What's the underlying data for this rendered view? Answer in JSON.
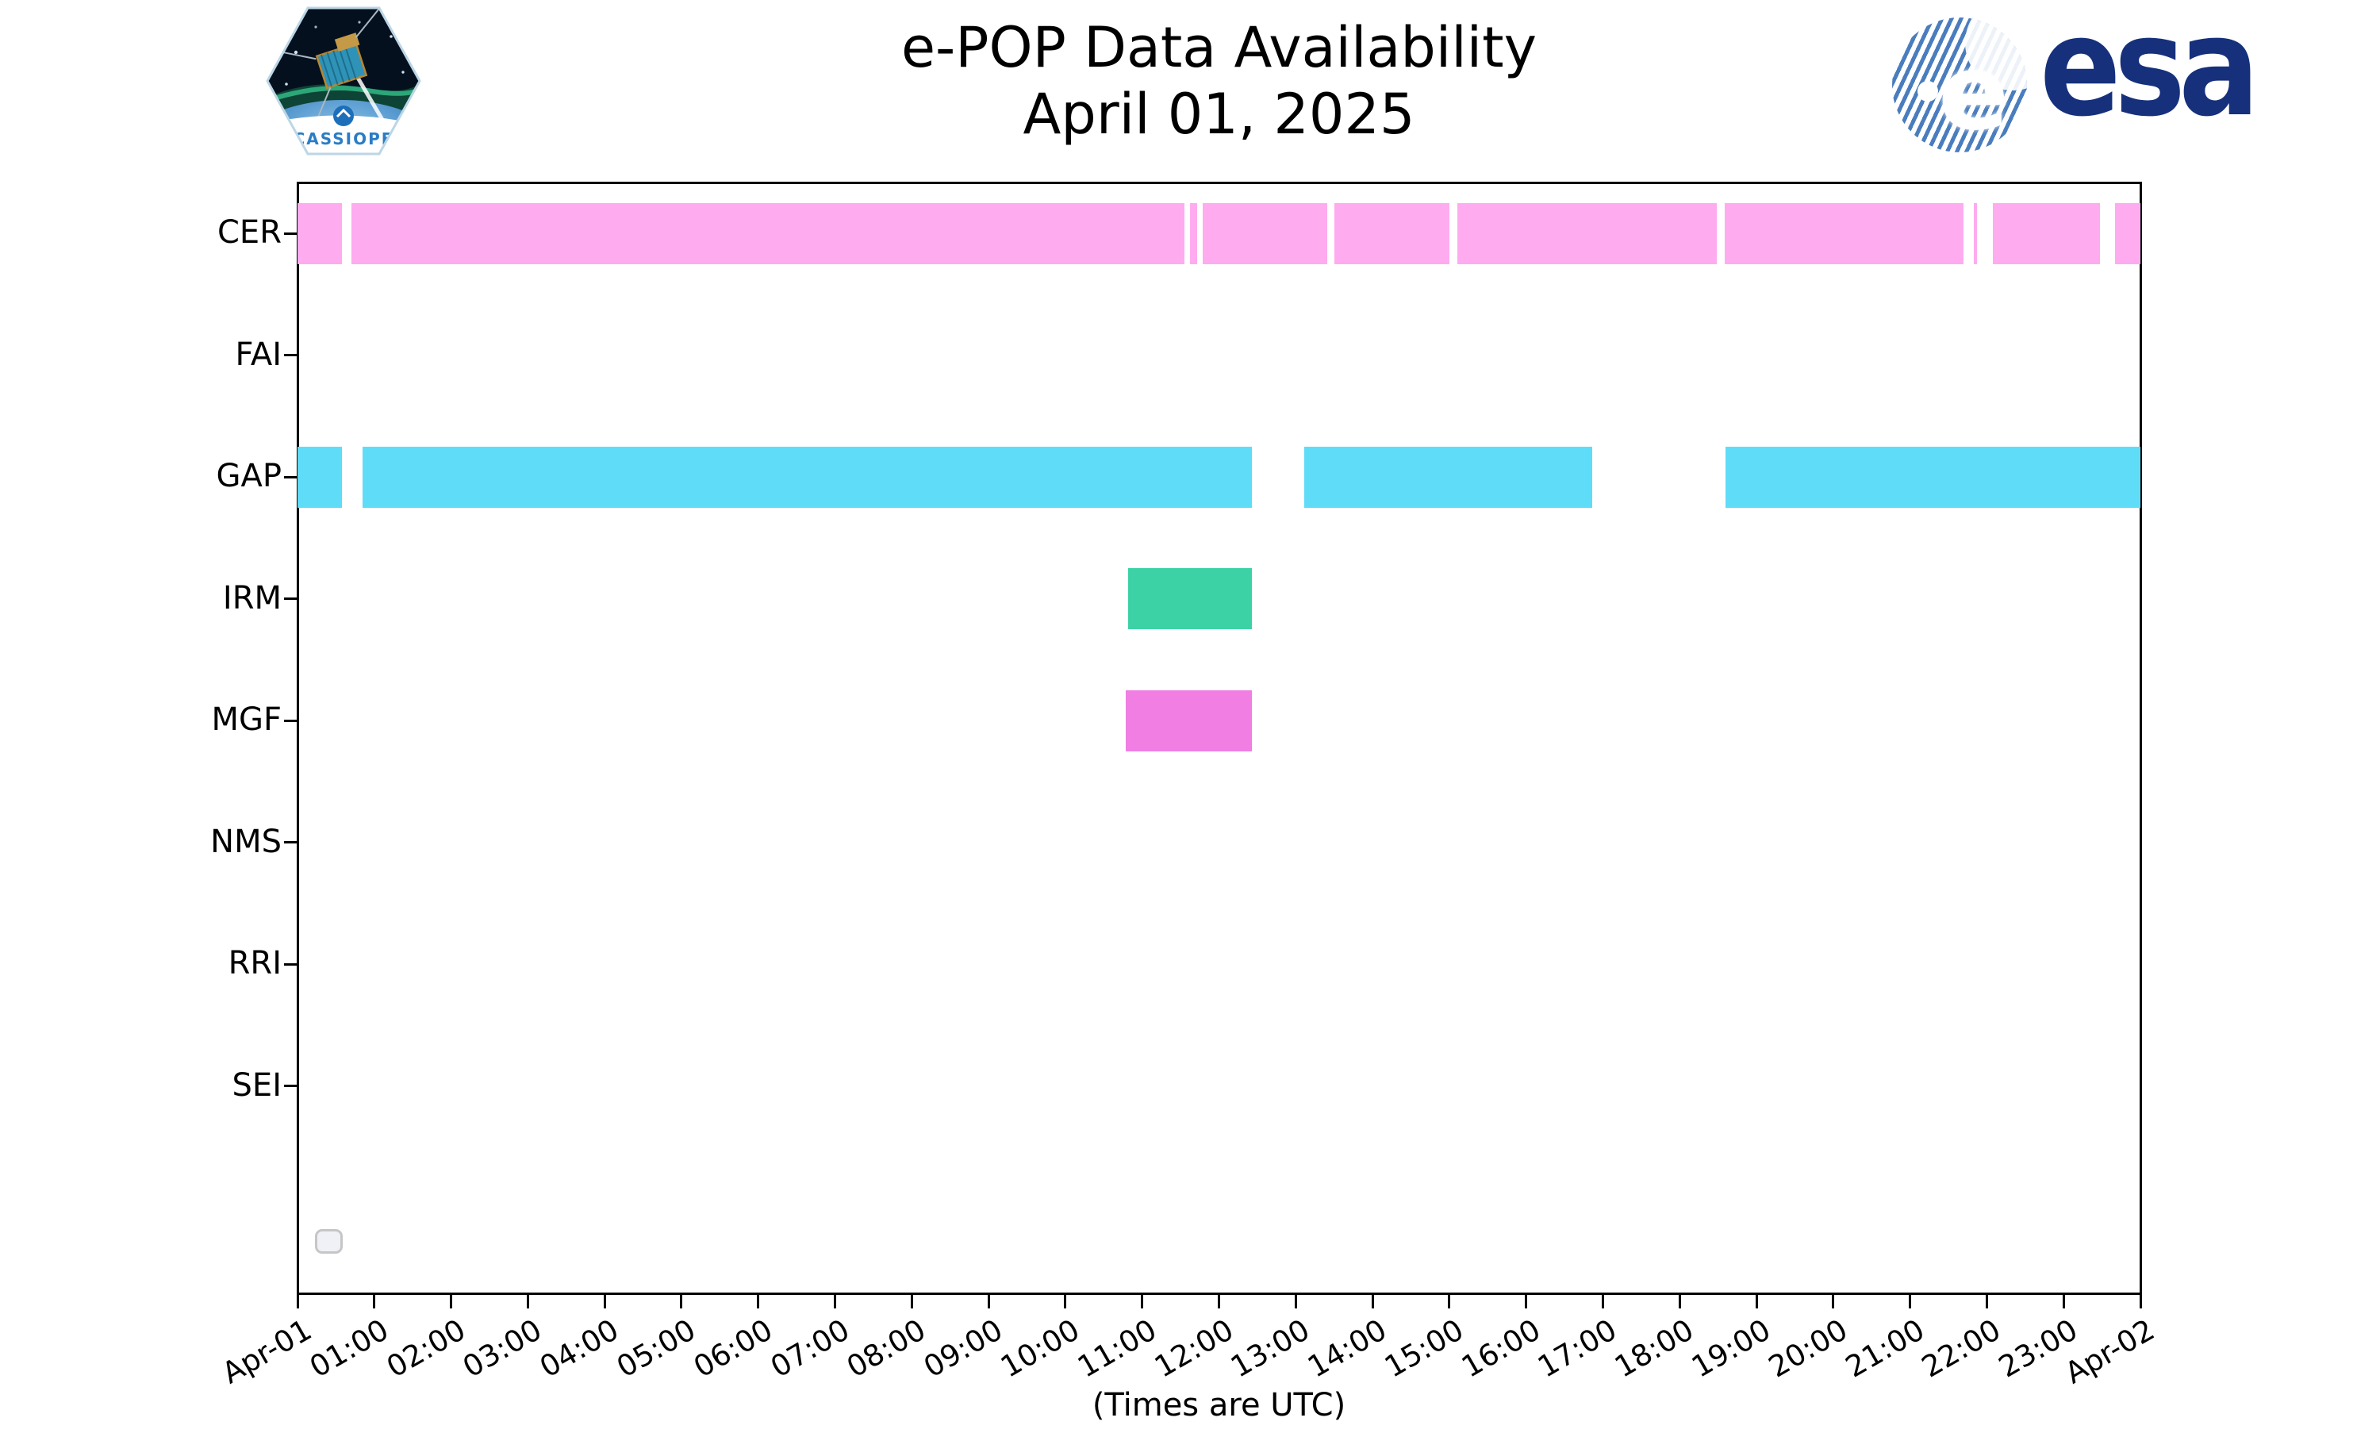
{
  "header": {
    "title": "e-POP Data Availability",
    "date": "April 01, 2025",
    "cassiope_patch_label": "CASSIOPE",
    "esa_wordmark": "esa",
    "esa_e": "e"
  },
  "chart_data": {
    "type": "timeline",
    "title": "e-POP Data Availability",
    "subtitle": "April 01, 2025",
    "xlabel": "(Times are UTC)",
    "x_range_hours": [
      0,
      24
    ],
    "x_tick_labels": [
      "Apr-01",
      "01:00",
      "02:00",
      "03:00",
      "04:00",
      "05:00",
      "06:00",
      "07:00",
      "08:00",
      "09:00",
      "10:00",
      "11:00",
      "12:00",
      "13:00",
      "14:00",
      "15:00",
      "16:00",
      "17:00",
      "18:00",
      "19:00",
      "20:00",
      "21:00",
      "22:00",
      "23:00",
      "Apr-02"
    ],
    "grid": false,
    "legend_position": "lower-left",
    "legend_entries": [],
    "rows": [
      {
        "label": "CER",
        "color": "#ffabf0",
        "segments_hours": [
          [
            0.0,
            0.58
          ],
          [
            0.7,
            11.55
          ],
          [
            11.62,
            11.72
          ],
          [
            11.79,
            13.41
          ],
          [
            13.5,
            15.0
          ],
          [
            15.1,
            18.48
          ],
          [
            18.59,
            21.7
          ],
          [
            21.83,
            21.87
          ],
          [
            22.08,
            23.47
          ],
          [
            23.67,
            24.0
          ]
        ]
      },
      {
        "label": "FAI",
        "color": "#ffabf0",
        "segments_hours": []
      },
      {
        "label": "GAP",
        "color": "#5fdcf8",
        "segments_hours": [
          [
            0.0,
            0.58
          ],
          [
            0.85,
            12.43
          ],
          [
            13.11,
            16.86
          ],
          [
            18.6,
            24.0
          ]
        ]
      },
      {
        "label": "IRM",
        "color": "#3dd2a6",
        "segments_hours": [
          [
            10.82,
            12.43
          ]
        ]
      },
      {
        "label": "MGF",
        "color": "#f07ee3",
        "segments_hours": [
          [
            10.79,
            12.43
          ]
        ]
      },
      {
        "label": "NMS",
        "color": "#cccccc",
        "segments_hours": []
      },
      {
        "label": "RRI",
        "color": "#cccccc",
        "segments_hours": []
      },
      {
        "label": "SEI",
        "color": "#cccccc",
        "segments_hours": []
      }
    ],
    "footnote": "(Times are UTC)"
  }
}
